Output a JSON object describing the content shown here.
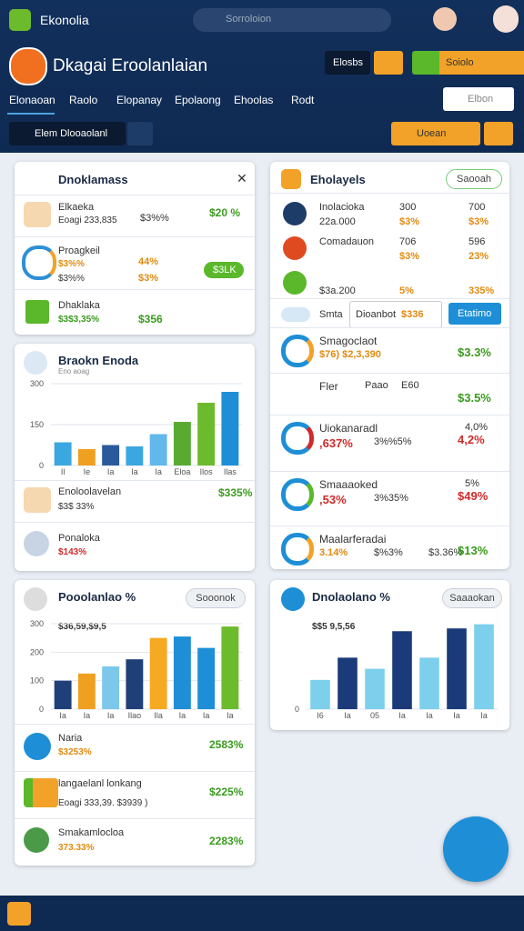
{
  "top_bar": {
    "app_name": "Ekonolia",
    "search_placeholder": "Sorroloion"
  },
  "header": {
    "title": "Dkagai Eroolanlaian",
    "button_dark": "Elosbs",
    "button_green": "Soiolo"
  },
  "tabs": [
    "Elonaoan",
    "Raolo",
    "Elopanay",
    "Epolaong",
    "Ehoolas",
    "Rodt"
  ],
  "tab_search": "Elbon",
  "toolbar": {
    "view_button": "Elem Dlooaolanl",
    "dropdown": "Uoean"
  },
  "summary_card": {
    "title": "Dnoklamass",
    "rows": [
      {
        "name": "Elkaeka",
        "sub": "Eoagi 233,835",
        "mid": "$3%%",
        "value": "$20 %"
      },
      {
        "name": "Proagkeil",
        "sub": "$3%%",
        "sub2": "$3%%",
        "mid": "44%",
        "mid2": "$3%",
        "badge": "$3LK"
      },
      {
        "name": "Dhaklaka",
        "sub": "$3$3,35%",
        "value": "$356"
      }
    ]
  },
  "trend_card": {
    "title": "Braokn Enoda",
    "subtitle": "Eno aoag",
    "chart": {
      "type": "bar",
      "ylim": [
        0,
        300
      ],
      "yticks": [
        0,
        150,
        300
      ],
      "categories": [
        "Il",
        "Ie",
        "Ia",
        "Ia",
        "Ia",
        "Eloa",
        "Ilos",
        "Ilas"
      ],
      "values": [
        85,
        60,
        75,
        70,
        115,
        160,
        230,
        270
      ],
      "colors": [
        "#3ba7e0",
        "#f0a020",
        "#2b5a9c",
        "#3ba7e0",
        "#62b8ea",
        "#5aaa32",
        "#6cbb2c",
        "#1e8fd6"
      ]
    },
    "rows": [
      {
        "name": "Enoloolavelan",
        "sub": "$3$ 33%",
        "value": "$335%"
      },
      {
        "name": "Ponaloka",
        "sub": "$143%"
      }
    ]
  },
  "pool_card": {
    "title": "Pooolanlao %",
    "button": "Sooonok",
    "chart_label": "$36,59,$9,5",
    "chart": {
      "type": "bar",
      "ylim": [
        0,
        300
      ],
      "yticks": [
        0,
        100,
        200,
        300
      ],
      "categories": [
        "Ia",
        "Ia",
        "Ia",
        "Ilao",
        "Ila",
        "Ia",
        "Ia",
        "Ia"
      ],
      "values": [
        100,
        125,
        150,
        175,
        250,
        255,
        215,
        290
      ],
      "colors": [
        "#1f3f78",
        "#f0a020",
        "#7cc8ea",
        "#1f3f78",
        "#f5aa22",
        "#1e8fd6",
        "#1e8fd6",
        "#6cbb2c"
      ]
    },
    "rows": [
      {
        "name": "Naria",
        "sub": "$3253%",
        "value": "2583%"
      },
      {
        "name": "langaelanl lonkang",
        "sub": "Eoagi 333,39. $3939 )",
        "value": "$225%"
      },
      {
        "name": "Smakamlocloa",
        "sub": "373.33%",
        "value": "2283%"
      }
    ]
  },
  "holdings_card": {
    "title": "Eholayels",
    "button": "Saooah",
    "rows": [
      {
        "name": "Inolacioka",
        "sub": "22a.000",
        "a": "300",
        "a2": "$3%",
        "b": "700",
        "b2": "$3%"
      },
      {
        "name": "Comadauon",
        "sub": "",
        "a": "706",
        "a2": "$3%",
        "b": "596",
        "b2": "23%"
      },
      {
        "name": "",
        "sub": "$3a.200",
        "a": "",
        "a2": "5%",
        "b": "",
        "b2": "335%"
      }
    ],
    "toggle_label": "Smta",
    "input_label": "Dioanbot",
    "input_value": "$336",
    "action": "Etatimo",
    "stats": [
      {
        "name": "Smagoclaot",
        "sub": "$76) $2,3,390",
        "value": "$3.3%"
      },
      {
        "name": "Fler",
        "chip1": "Paao",
        "chip2": "E60",
        "value": "$3.5%"
      },
      {
        "name": "Uiokanaradl",
        "sub": ",637%",
        "sub2": "3%%5%",
        "top": "4,0%",
        "value": "4,2%"
      },
      {
        "name": "Smaaaoked",
        "sub": ",53%",
        "sub2": "3%35%",
        "top": "5%",
        "value": "$49%"
      },
      {
        "name": "Maalarferadai",
        "sub": "3.14%",
        "sub2": "$%3%",
        "sub3": "$3.36%",
        "value": "$13%"
      }
    ]
  },
  "volume_card": {
    "title": "Dnolaolano %",
    "button": "Saaaokan",
    "chart_label": "$$5 9,5,56",
    "chart": {
      "type": "bar",
      "ylim": [
        0,
        320
      ],
      "yticks": [
        0
      ],
      "categories": [
        "I6",
        "Ia",
        "05",
        "Ia",
        "Ia",
        "Ia",
        "Ia"
      ],
      "values": [
        105,
        185,
        145,
        280,
        185,
        290,
        305
      ],
      "colors": [
        "#7cd0ec",
        "#1a3a7a",
        "#7cd0ec",
        "#1a3a7a",
        "#7cd0ec",
        "#1a3a7a",
        "#7cd0ec"
      ]
    }
  }
}
